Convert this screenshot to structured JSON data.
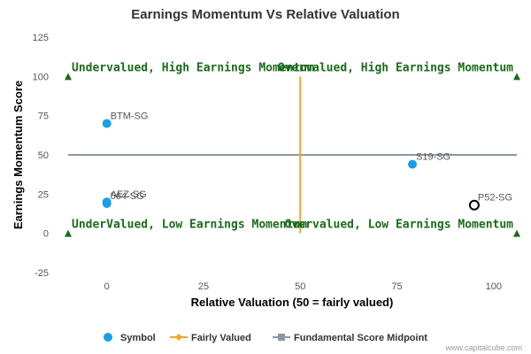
{
  "chart_data": {
    "type": "scatter",
    "title": "Earnings Momentum Vs Relative Valuation",
    "xlabel": "Relative Valuation (50 = fairly valued)",
    "ylabel": "Earnings Momentum Score",
    "xlim": [
      -10,
      106
    ],
    "ylim": [
      -25,
      125
    ],
    "x_ticks": [
      0,
      25,
      50,
      75,
      100
    ],
    "y_ticks": [
      -25,
      0,
      25,
      50,
      75,
      100,
      125
    ],
    "grid": false,
    "legend_position": "bottom",
    "series": [
      {
        "name": "Symbol",
        "color": "#1a9ee8",
        "points": [
          {
            "label": "BTM-SG",
            "x": 0,
            "y": 70
          },
          {
            "label": "AEZ-SG",
            "x": 0,
            "y": 20
          },
          {
            "label": "564-SG",
            "x": 0,
            "y": 19
          },
          {
            "label": "S19-SG",
            "x": 79,
            "y": 44
          },
          {
            "label": "P52-SG",
            "x": 95,
            "y": 18,
            "highlight": true
          }
        ]
      },
      {
        "name": "Fairly Valued",
        "color": "#f5a623",
        "orientation": "vertical",
        "x": 50
      },
      {
        "name": "Fundamental Score Midpoint",
        "color": "#8a97a6",
        "orientation": "horizontal",
        "y": 50
      }
    ],
    "quadrant_labels": [
      {
        "text": "Undervalued, High Earnings Momentum",
        "x": -10,
        "y": 100
      },
      {
        "text": "Overvalued, High Earnings Momentum",
        "x": 106,
        "y": 100
      },
      {
        "text": "UnderValued, Low Earnings Momentum",
        "x": -10,
        "y": 0
      },
      {
        "text": "Overvalued, Low Earnings Momentum",
        "x": 106,
        "y": 0
      }
    ],
    "quadrant_label_color": "#1a6b1a",
    "corner_markers": [
      {
        "x": -10,
        "y": 100
      },
      {
        "x": 106,
        "y": 100
      },
      {
        "x": -10,
        "y": 0
      },
      {
        "x": 106,
        "y": 0
      }
    ],
    "highlight_color": "#000000"
  },
  "credit": "www.capitalcube.com"
}
